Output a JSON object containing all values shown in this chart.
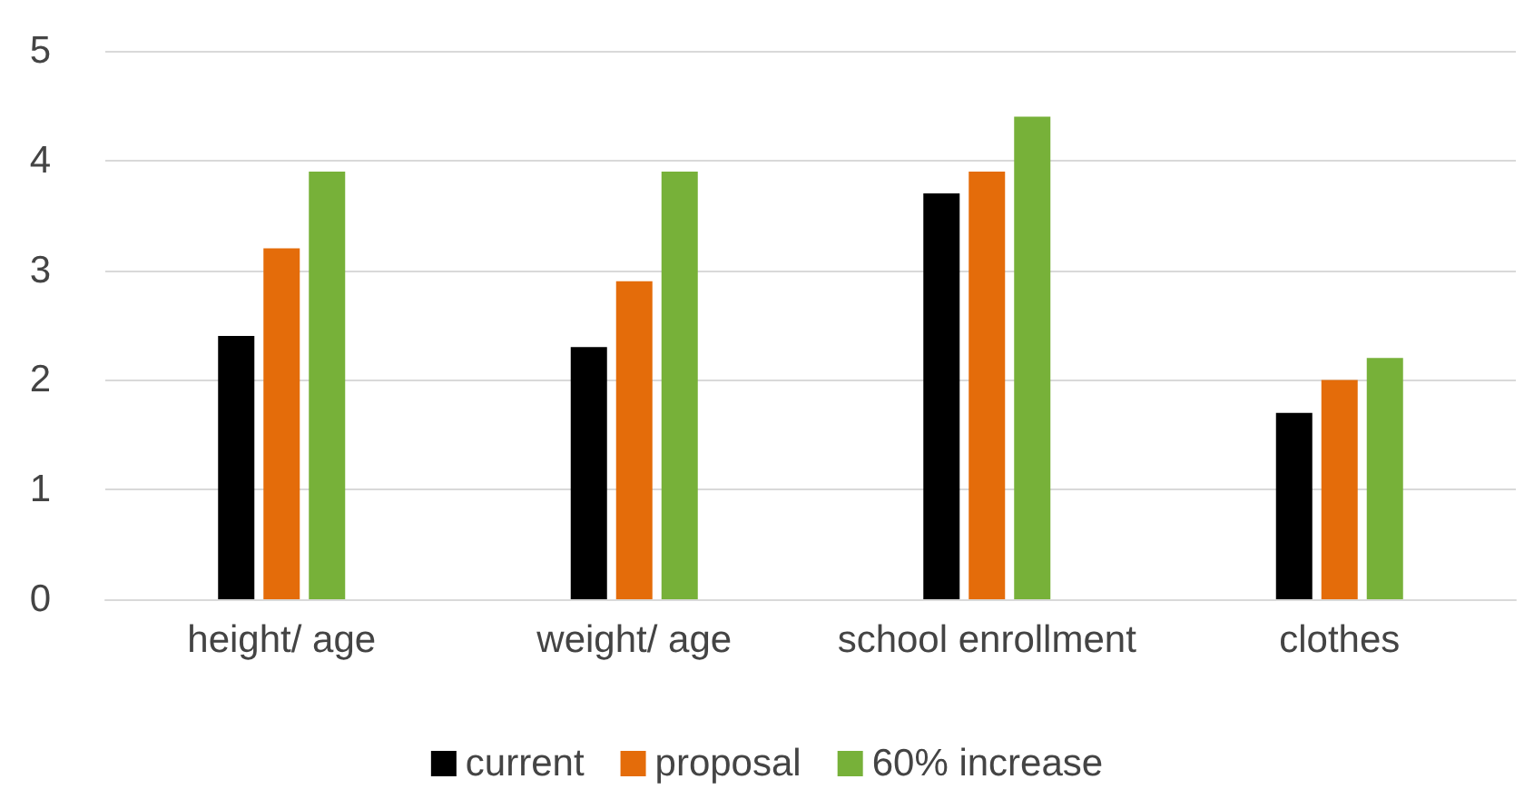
{
  "chart_data": {
    "type": "bar",
    "categories": [
      "height/ age",
      "weight/ age",
      "school enrollment",
      "clothes"
    ],
    "series": [
      {
        "name": "current",
        "color": "#000000",
        "values": [
          2.4,
          2.3,
          3.7,
          1.7
        ]
      },
      {
        "name": "proposal",
        "color": "#e46c0a",
        "values": [
          3.2,
          2.9,
          3.9,
          2.0
        ]
      },
      {
        "name": "60% increase",
        "color": "#77b139",
        "values": [
          3.9,
          3.9,
          4.4,
          2.2
        ]
      }
    ],
    "ylim": [
      0,
      5
    ],
    "yticks": [
      0,
      1,
      2,
      3,
      4,
      5
    ],
    "grid": "y",
    "legend": "bottom"
  }
}
